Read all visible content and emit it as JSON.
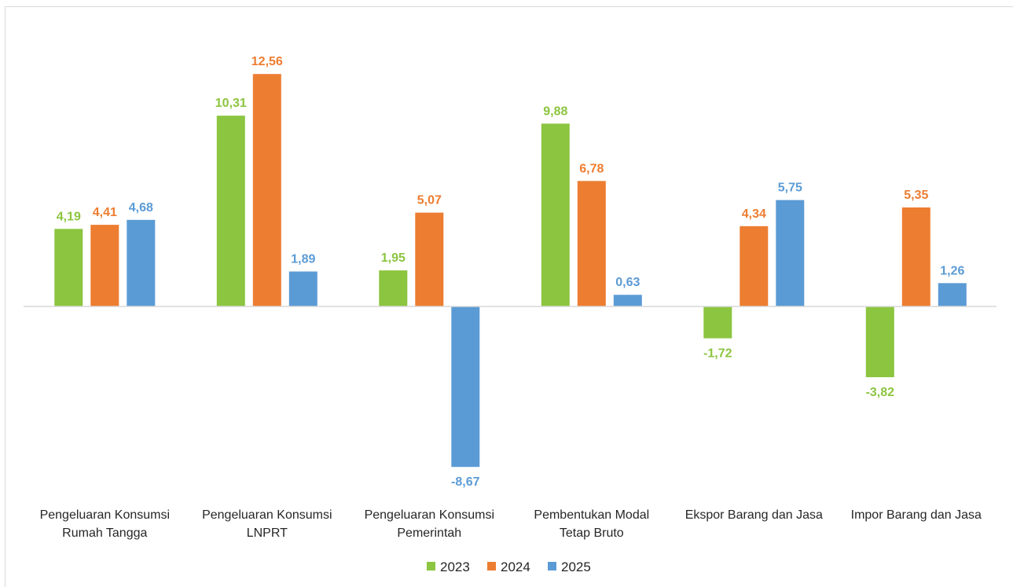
{
  "chart_data": {
    "type": "bar",
    "categories": [
      [
        "Pengeluaran Konsumsi",
        "Rumah Tangga"
      ],
      [
        "Pengeluaran Konsumsi",
        "LNPRT"
      ],
      [
        "Pengeluaran Konsumsi",
        "Pemerintah"
      ],
      [
        "Pembentukan Modal",
        "Tetap Bruto"
      ],
      [
        "Ekspor Barang dan Jasa"
      ],
      [
        "Impor Barang dan Jasa"
      ]
    ],
    "series": [
      {
        "name": "2023",
        "color": "#8cc540",
        "values": [
          4.19,
          10.31,
          1.95,
          9.88,
          -1.72,
          -3.82
        ],
        "labels": [
          "4,19",
          "10,31",
          "1,95",
          "9,88",
          "-1,72",
          "-3,82"
        ]
      },
      {
        "name": "2024",
        "color": "#ed7d31",
        "values": [
          4.41,
          12.56,
          5.07,
          6.78,
          4.34,
          5.35
        ],
        "labels": [
          "4,41",
          "12,56",
          "5,07",
          "6,78",
          "4,34",
          "5,35"
        ]
      },
      {
        "name": "2025",
        "color": "#5b9bd5",
        "values": [
          4.68,
          1.89,
          -8.67,
          0.63,
          5.75,
          1.26
        ],
        "labels": [
          "4,68",
          "1,89",
          "-8,67",
          "0,63",
          "5,75",
          "1,26"
        ]
      }
    ],
    "legend_position": "bottom",
    "grid": false,
    "ylim": [
      -8.67,
      12.56
    ]
  }
}
